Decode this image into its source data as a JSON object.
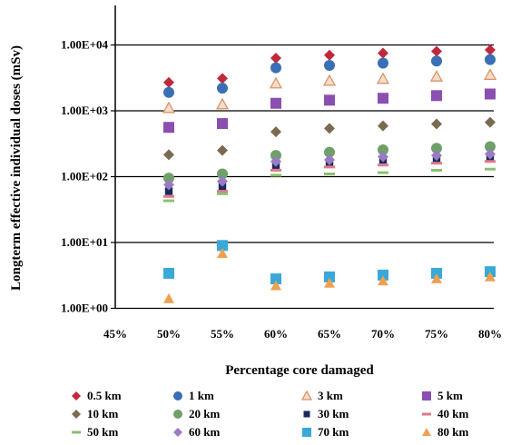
{
  "chart_data": {
    "type": "scatter",
    "xlabel": "Percentage core damaged",
    "ylabel": "Longterm effective  individual doses (mSv)",
    "x_tick_labels": [
      "45%",
      "50%",
      "55%",
      "60%",
      "65%",
      "70%",
      "75%",
      "80%"
    ],
    "y_tick_labels": [
      "1.00E+00",
      "1.00E+01",
      "1.00E+02",
      "1.00E+03",
      "1.00E+04"
    ],
    "x_range": [
      45,
      80
    ],
    "y_range": [
      1,
      20000
    ],
    "y_scale": "log",
    "grid": "horizontal major gridlines",
    "legend_position": "bottom",
    "x": [
      50,
      55,
      60,
      65,
      70,
      75,
      80
    ],
    "series": [
      {
        "name": "0.5 km",
        "marker": "diamond",
        "color": "#c0283c",
        "values": [
          2700,
          3100,
          6300,
          7000,
          7500,
          8000,
          8400
        ]
      },
      {
        "name": "1 km",
        "marker": "circle",
        "color": "#3a6fb5",
        "values": [
          1900,
          2200,
          4500,
          4900,
          5300,
          5700,
          6000
        ]
      },
      {
        "name": "3 km",
        "marker": "triangle-open",
        "color": "#d9956a",
        "values": [
          1100,
          1250,
          2600,
          2850,
          3050,
          3300,
          3500
        ]
      },
      {
        "name": "5 km",
        "marker": "square",
        "color": "#8a4fb0",
        "values": [
          560,
          640,
          1300,
          1450,
          1550,
          1700,
          1800
        ]
      },
      {
        "name": "10 km",
        "marker": "diamond",
        "color": "#7a6a50",
        "values": [
          215,
          250,
          480,
          540,
          590,
          630,
          670
        ]
      },
      {
        "name": "20 km",
        "marker": "circle",
        "color": "#6fa06a",
        "values": [
          95,
          110,
          210,
          235,
          255,
          270,
          285
        ]
      },
      {
        "name": "30 km",
        "marker": "square-small",
        "color": "#1a2a5a",
        "values": [
          60,
          70,
          150,
          165,
          180,
          190,
          200
        ]
      },
      {
        "name": "40 km",
        "marker": "dash",
        "color": "#e07a8a",
        "values": [
          50,
          60,
          125,
          140,
          150,
          160,
          170
        ]
      },
      {
        "name": "50 km",
        "marker": "dash",
        "color": "#8cc070",
        "values": [
          43,
          55,
          105,
          110,
          115,
          125,
          130
        ]
      },
      {
        "name": "60 km",
        "marker": "diamond",
        "color": "#9a7ac4",
        "values": [
          75,
          85,
          170,
          180,
          200,
          210,
          220
        ]
      },
      {
        "name": "70 km",
        "marker": "square",
        "color": "#3aa8d8",
        "values": [
          3.4,
          9.0,
          2.8,
          3.0,
          3.2,
          3.4,
          3.6
        ]
      },
      {
        "name": "80 km",
        "marker": "triangle",
        "color": "#f0a050",
        "values": [
          1.4,
          6.8,
          2.2,
          2.4,
          2.6,
          2.8,
          3.0
        ]
      }
    ]
  }
}
